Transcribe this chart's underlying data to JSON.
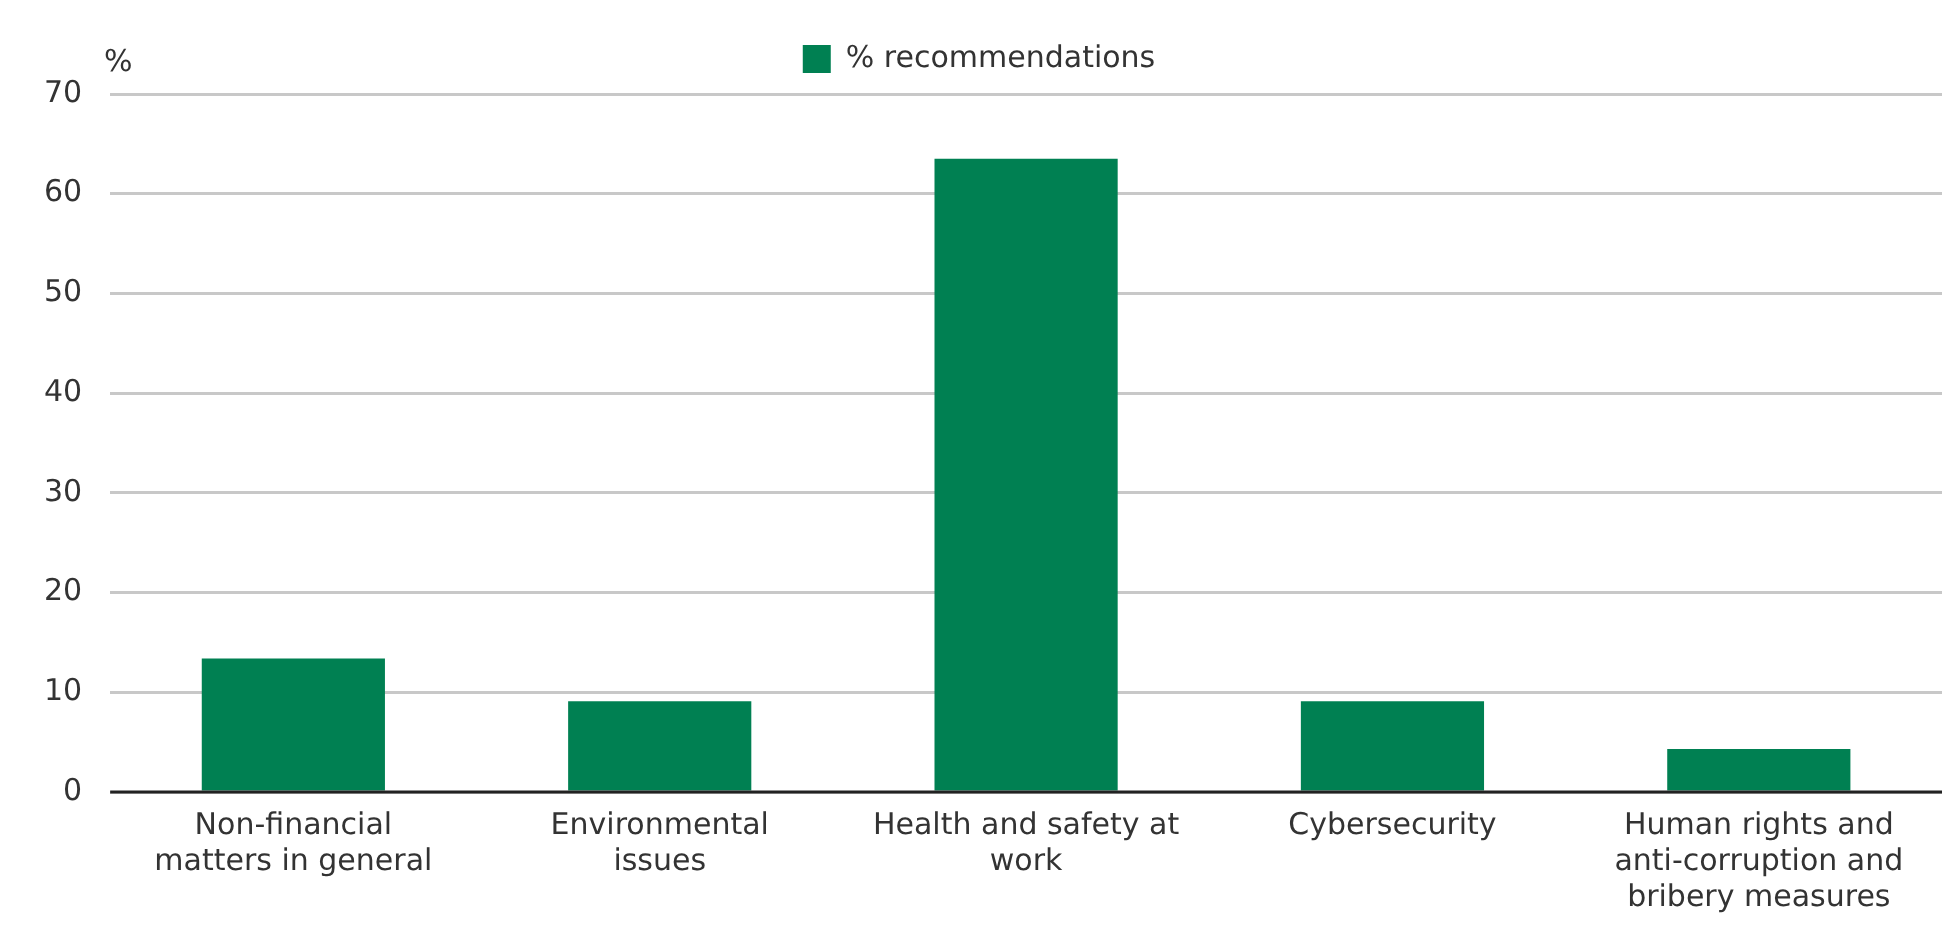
{
  "chart_data": {
    "type": "bar",
    "ylabel": "%",
    "categories": [
      "Non-financial matters in general",
      "Environmental issues",
      "Health and safety at work",
      "Cybersecurity",
      "Human rights and anti-corruption and bribery measures"
    ],
    "series": [
      {
        "name": "% recommendations",
        "color": "#008052",
        "values": [
          13.4,
          9.1,
          63.5,
          9.1,
          4.3
        ]
      }
    ],
    "ylim": [
      0,
      70
    ],
    "yticks": [
      0,
      10,
      20,
      30,
      40,
      50,
      60,
      70
    ],
    "grid": "y",
    "legend": "top"
  }
}
